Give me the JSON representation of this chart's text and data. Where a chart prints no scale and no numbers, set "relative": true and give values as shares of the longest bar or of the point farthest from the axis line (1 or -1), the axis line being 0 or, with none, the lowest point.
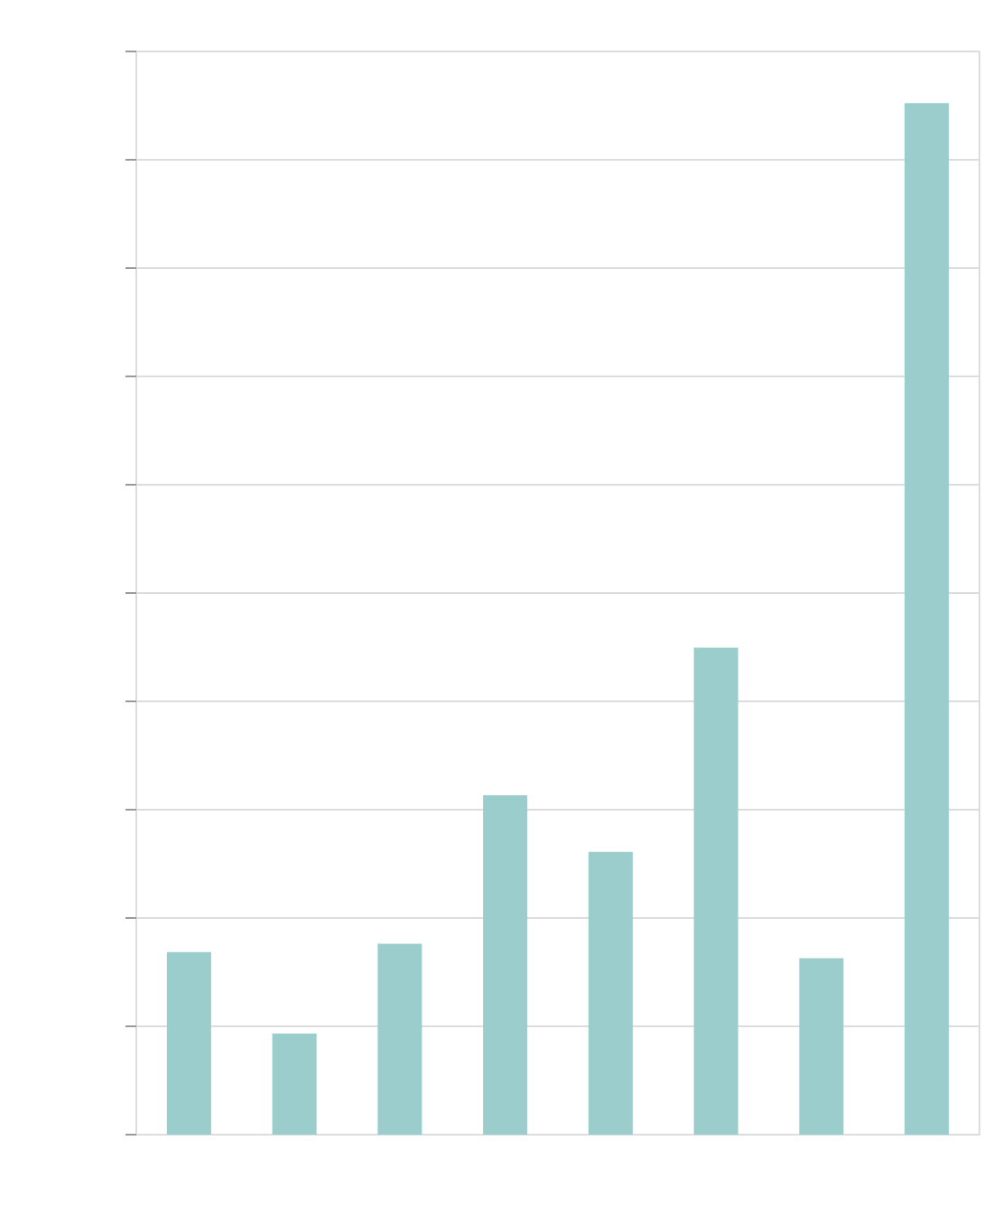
{
  "chart_data": {
    "type": "bar",
    "relative": true,
    "categories": [
      null,
      null,
      null,
      null,
      null,
      null,
      null,
      null
    ],
    "values": [
      0.177,
      0.098,
      0.185,
      0.329,
      0.274,
      0.472,
      0.171,
      1
    ],
    "color": "#9bcdcd",
    "grid": "y"
  }
}
